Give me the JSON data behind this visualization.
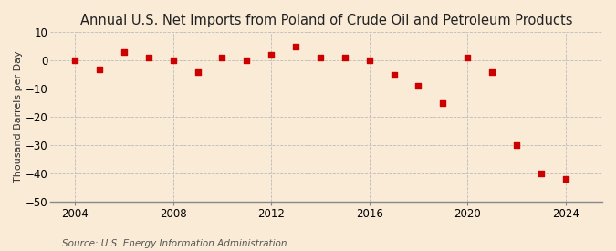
{
  "title": "Annual U.S. Net Imports from Poland of Crude Oil and Petroleum Products",
  "ylabel": "Thousand Barrels per Day",
  "source": "Source: U.S. Energy Information Administration",
  "background_color": "#faebd7",
  "marker_color": "#cc0000",
  "years": [
    2004,
    2005,
    2006,
    2007,
    2008,
    2009,
    2010,
    2011,
    2012,
    2013,
    2014,
    2015,
    2016,
    2017,
    2018,
    2019,
    2020,
    2021,
    2022,
    2023,
    2024
  ],
  "values": [
    0,
    -3,
    3,
    1,
    0,
    -4,
    1,
    0,
    2,
    5,
    1,
    1,
    0,
    -5,
    -9,
    -15,
    1,
    -4,
    -30,
    -40,
    -42
  ],
  "xlim": [
    2003.0,
    2025.5
  ],
  "ylim": [
    -50,
    10
  ],
  "yticks": [
    10,
    0,
    -10,
    -20,
    -30,
    -40,
    -50
  ],
  "xticks": [
    2004,
    2008,
    2012,
    2016,
    2020,
    2024
  ],
  "grid_color": "#bbbbbb",
  "title_fontsize": 10.5,
  "label_fontsize": 8,
  "tick_fontsize": 8.5,
  "source_fontsize": 7.5,
  "marker_size": 15
}
